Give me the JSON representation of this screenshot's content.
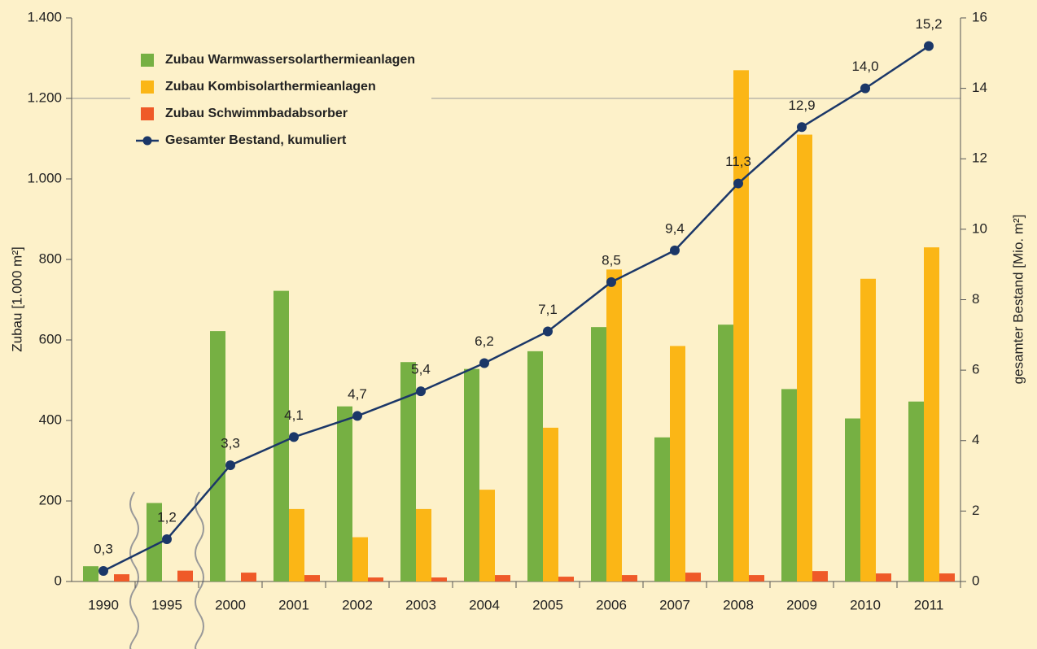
{
  "chart_data": {
    "type": "bar",
    "categories": [
      "1990",
      "1995",
      "2000",
      "2001",
      "2002",
      "2003",
      "2004",
      "2005",
      "2006",
      "2007",
      "2008",
      "2009",
      "2010",
      "2011"
    ],
    "series": [
      {
        "name": "Zubau Warmwassersolarthermieanlagen",
        "type": "bar",
        "color": "#76b043",
        "values": [
          38,
          195,
          622,
          722,
          435,
          545,
          528,
          572,
          632,
          358,
          638,
          478,
          405,
          447
        ]
      },
      {
        "name": "Zubau Kombisolarthermieanlagen",
        "type": "bar",
        "color": "#fbb616",
        "values": [
          null,
          null,
          null,
          180,
          110,
          180,
          228,
          382,
          775,
          585,
          1270,
          1110,
          752,
          830
        ]
      },
      {
        "name": "Zubau Schwimmbadabsorber",
        "type": "bar",
        "color": "#ef5a28",
        "values": [
          18,
          27,
          22,
          16,
          10,
          10,
          16,
          12,
          16,
          22,
          16,
          26,
          20,
          20
        ]
      },
      {
        "name": "Gesamter Bestand, kumuliert",
        "type": "line",
        "axis": "y2",
        "color": "#1b3768",
        "values": [
          0.3,
          1.2,
          3.3,
          4.1,
          4.7,
          5.4,
          6.2,
          7.1,
          8.5,
          9.4,
          11.3,
          12.9,
          14.0,
          15.2
        ],
        "value_labels": [
          "0,3",
          "1,2",
          "3,3",
          "4,1",
          "4,7",
          "5,4",
          "6,2",
          "7,1",
          "8,5",
          "9,4",
          "11,3",
          "12,9",
          "14,0",
          "15,2"
        ]
      }
    ],
    "ylabel": "Zubau [1.000 m²]",
    "y2label": "gesamter Bestand [Mio. m²]",
    "ylim": [
      0,
      1400
    ],
    "yticks": [
      0,
      200,
      400,
      600,
      800,
      {
        "value": 1000,
        "label": "1.000"
      },
      {
        "value": 1200,
        "label": "1.200"
      },
      {
        "value": 1400,
        "label": "1.400"
      }
    ],
    "y2lim": [
      0,
      16
    ],
    "y2ticks": [
      0,
      2,
      4,
      6,
      8,
      10,
      12,
      14,
      16
    ],
    "legend": "top-left"
  }
}
